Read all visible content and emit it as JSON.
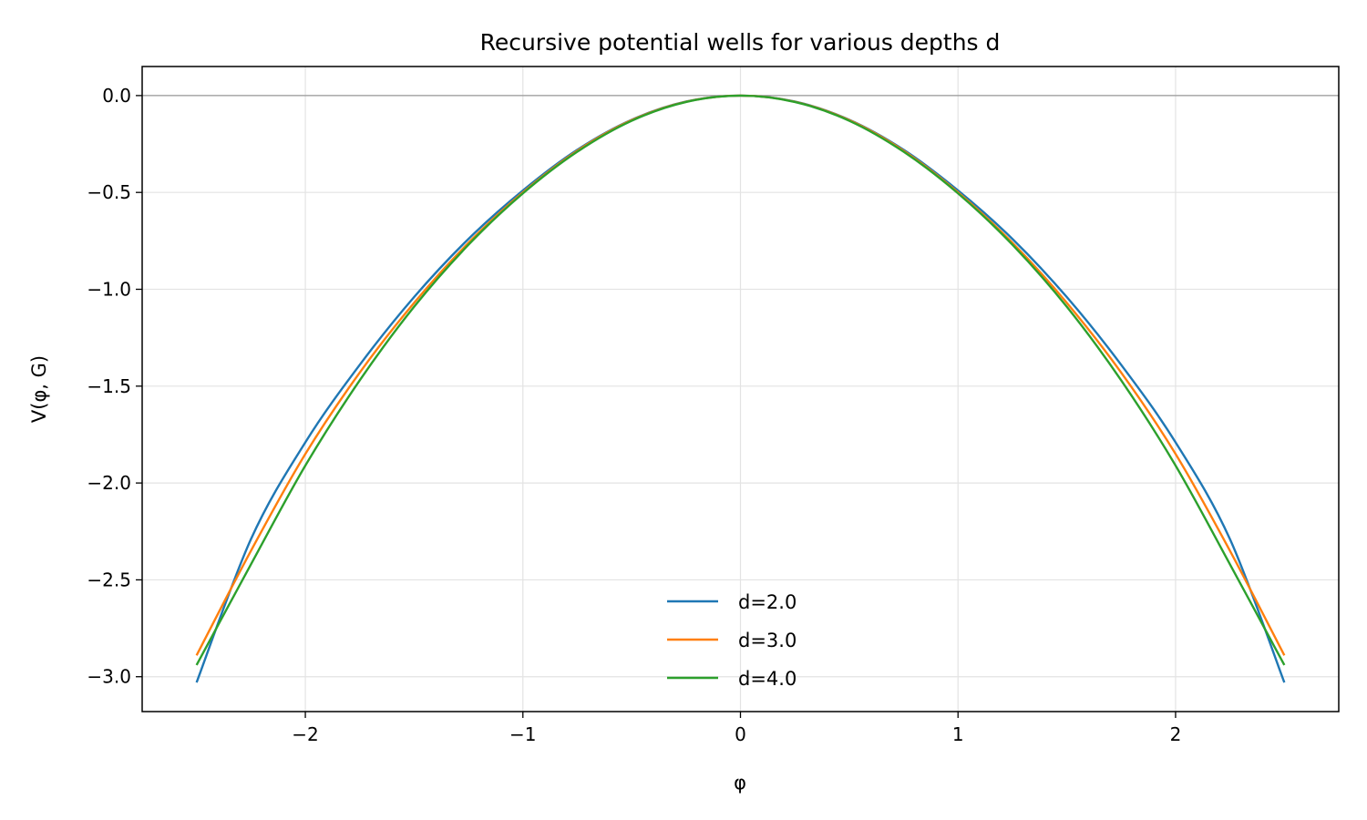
{
  "chart_data": {
    "type": "line",
    "title": "Recursive potential wells for various depths d",
    "xlabel": "φ",
    "ylabel": "V(φ, G)",
    "xlim": [
      -2.75,
      2.75
    ],
    "ylim": [
      -3.18,
      0.15
    ],
    "x_ticks": [
      -2,
      -1,
      0,
      1,
      2
    ],
    "x_tick_labels": [
      "−2",
      "−1",
      "0",
      "1",
      "2"
    ],
    "y_ticks": [
      0.0,
      -0.5,
      -1.0,
      -1.5,
      -2.0,
      -2.5,
      -3.0
    ],
    "y_tick_labels": [
      "0.0",
      "−0.5",
      "−1.0",
      "−1.5",
      "−2.0",
      "−2.5",
      "−3.0"
    ],
    "grid": true,
    "reference_line_y": 0.0,
    "legend_position": "lower center",
    "x": [
      -2.5,
      -2.25,
      -2.0,
      -1.75,
      -1.5,
      -1.25,
      -1.0,
      -0.75,
      -0.5,
      -0.25,
      0.0,
      0.25,
      0.5,
      0.75,
      1.0,
      1.25,
      1.5,
      1.75,
      2.0,
      2.25,
      2.5
    ],
    "series": [
      {
        "name": "d=2.0",
        "color": "#1f77b4",
        "values": [
          -3.03,
          -2.29,
          -1.79,
          -1.39,
          -1.04,
          -0.74,
          -0.49,
          -0.28,
          -0.125,
          -0.031,
          0.0,
          -0.031,
          -0.125,
          -0.28,
          -0.49,
          -0.74,
          -1.04,
          -1.39,
          -1.79,
          -2.29,
          -3.03
        ]
      },
      {
        "name": "d=3.0",
        "color": "#ff7f0e",
        "values": [
          -2.89,
          -2.35,
          -1.85,
          -1.43,
          -1.07,
          -0.76,
          -0.5,
          -0.285,
          -0.127,
          -0.032,
          0.0,
          -0.032,
          -0.127,
          -0.285,
          -0.5,
          -0.76,
          -1.07,
          -1.43,
          -1.85,
          -2.35,
          -2.89
        ]
      },
      {
        "name": "d=4.0",
        "color": "#2ca02c",
        "values": [
          -2.94,
          -2.42,
          -1.91,
          -1.47,
          -1.09,
          -0.77,
          -0.505,
          -0.29,
          -0.13,
          -0.033,
          0.0,
          -0.033,
          -0.13,
          -0.29,
          -0.505,
          -0.77,
          -1.09,
          -1.47,
          -1.91,
          -2.42,
          -2.94
        ]
      }
    ]
  }
}
